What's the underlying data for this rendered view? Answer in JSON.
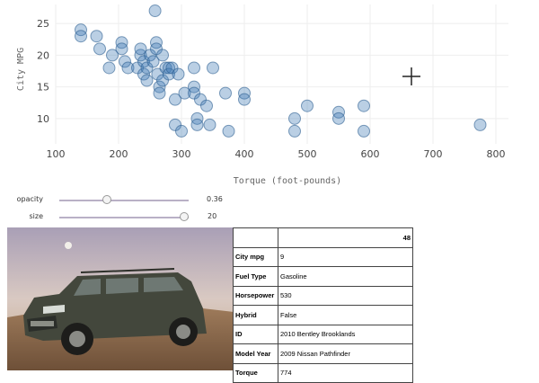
{
  "chart_data": {
    "type": "scatter",
    "xlabel": "Torque (foot-pounds)",
    "ylabel": "City MPG",
    "xlim": [
      100,
      820
    ],
    "ylim": [
      6,
      28
    ],
    "xticks": [
      100,
      200,
      300,
      400,
      500,
      600,
      700,
      800
    ],
    "yticks": [
      10,
      15,
      20,
      25
    ],
    "grid": true,
    "marker_color": "#3f7bb5",
    "points": [
      {
        "x": 140,
        "y": 24
      },
      {
        "x": 140,
        "y": 23
      },
      {
        "x": 165,
        "y": 23
      },
      {
        "x": 170,
        "y": 21
      },
      {
        "x": 185,
        "y": 18
      },
      {
        "x": 190,
        "y": 20
      },
      {
        "x": 205,
        "y": 22
      },
      {
        "x": 205,
        "y": 21
      },
      {
        "x": 210,
        "y": 19
      },
      {
        "x": 215,
        "y": 18
      },
      {
        "x": 230,
        "y": 18
      },
      {
        "x": 235,
        "y": 20
      },
      {
        "x": 235,
        "y": 21
      },
      {
        "x": 240,
        "y": 19
      },
      {
        "x": 240,
        "y": 17
      },
      {
        "x": 245,
        "y": 16
      },
      {
        "x": 245,
        "y": 18
      },
      {
        "x": 250,
        "y": 20
      },
      {
        "x": 255,
        "y": 19
      },
      {
        "x": 258,
        "y": 27
      },
      {
        "x": 260,
        "y": 22
      },
      {
        "x": 260,
        "y": 21
      },
      {
        "x": 262,
        "y": 17
      },
      {
        "x": 265,
        "y": 15
      },
      {
        "x": 265,
        "y": 14
      },
      {
        "x": 270,
        "y": 20
      },
      {
        "x": 270,
        "y": 16
      },
      {
        "x": 275,
        "y": 18
      },
      {
        "x": 280,
        "y": 18
      },
      {
        "x": 280,
        "y": 17
      },
      {
        "x": 285,
        "y": 18
      },
      {
        "x": 290,
        "y": 13
      },
      {
        "x": 295,
        "y": 17
      },
      {
        "x": 290,
        "y": 9
      },
      {
        "x": 300,
        "y": 8
      },
      {
        "x": 305,
        "y": 14
      },
      {
        "x": 320,
        "y": 18
      },
      {
        "x": 320,
        "y": 15
      },
      {
        "x": 320,
        "y": 14
      },
      {
        "x": 325,
        "y": 10
      },
      {
        "x": 325,
        "y": 9
      },
      {
        "x": 330,
        "y": 13
      },
      {
        "x": 340,
        "y": 12
      },
      {
        "x": 345,
        "y": 9
      },
      {
        "x": 350,
        "y": 18
      },
      {
        "x": 370,
        "y": 14
      },
      {
        "x": 375,
        "y": 8
      },
      {
        "x": 400,
        "y": 14
      },
      {
        "x": 400,
        "y": 13
      },
      {
        "x": 480,
        "y": 10
      },
      {
        "x": 480,
        "y": 8
      },
      {
        "x": 500,
        "y": 12
      },
      {
        "x": 550,
        "y": 11
      },
      {
        "x": 550,
        "y": 10
      },
      {
        "x": 590,
        "y": 12
      },
      {
        "x": 590,
        "y": 8
      },
      {
        "x": 775,
        "y": 9
      }
    ]
  },
  "controls": {
    "opacity": {
      "label": "opacity",
      "value": "0.36",
      "fraction": 0.36
    },
    "size": {
      "label": "size",
      "value": "20",
      "fraction": 1.0
    }
  },
  "details": {
    "index": "48",
    "rows": [
      {
        "key": "City mpg",
        "value": "9"
      },
      {
        "key": "Fuel Type",
        "value": "Gasoline"
      },
      {
        "key": "Horsepower",
        "value": "530"
      },
      {
        "key": "Hybrid",
        "value": "False"
      },
      {
        "key": "ID",
        "value": "2010 Bentley Brooklands"
      },
      {
        "key": "Model Year",
        "value": "2009 Nissan Pathfinder"
      },
      {
        "key": "Torque",
        "value": "774"
      }
    ]
  }
}
